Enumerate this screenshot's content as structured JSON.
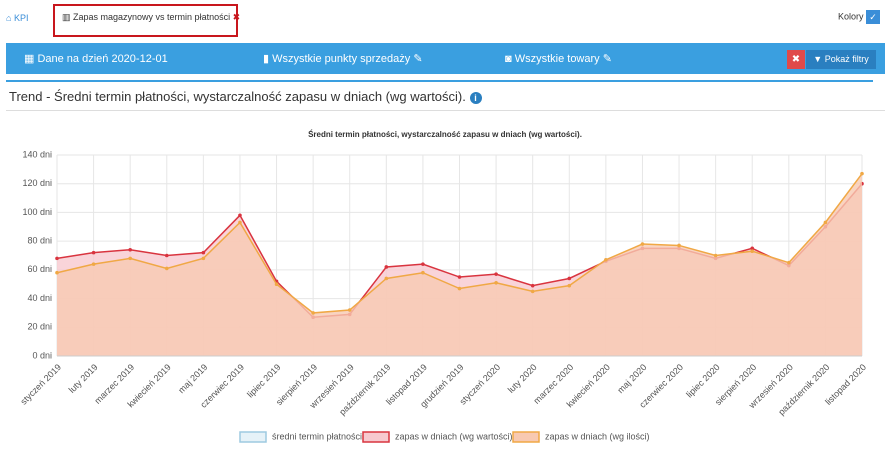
{
  "tabs": {
    "home": "KPI",
    "active": "Zapas magazynowy vs termin płatności",
    "colors": "Kolory"
  },
  "filters": {
    "date": "Dane na dzień 2020-12-01",
    "stores": "Wszystkie punkty sprzedaży",
    "products": "Wszystkie towary",
    "show_filters": "Pokaż filtry"
  },
  "section_title": "Trend - Średni termin płatności, wystarczalność zapasu w dniach (wg wartości).",
  "chart_data": {
    "type": "area",
    "title": "Średni termin płatności, wystarczalność zapasu w dniach (wg wartości).",
    "categories": [
      "styczeń 2019",
      "luty 2019",
      "marzec 2019",
      "kwiecień 2019",
      "maj 2019",
      "czerwiec 2019",
      "lipiec 2019",
      "sierpień 2019",
      "wrzesień 2019",
      "październik 2019",
      "listopad 2019",
      "grudzień 2019",
      "styczeń 2020",
      "luty 2020",
      "marzec 2020",
      "kwiecień 2020",
      "maj 2020",
      "czerwiec 2020",
      "lipiec 2020",
      "sierpień 2020",
      "wrzesień 2020",
      "październik 2020",
      "listopad 2020"
    ],
    "series": [
      {
        "name": "średni termin płatności",
        "color": "#9ecae1",
        "fill": "#e6f2f8",
        "values": [
          null,
          null,
          null,
          null,
          null,
          null,
          null,
          null,
          null,
          null,
          null,
          null,
          null,
          null,
          null,
          null,
          null,
          null,
          null,
          null,
          null,
          null,
          null
        ]
      },
      {
        "name": "zapas w dniach (wg wartości)",
        "color": "#d9343f",
        "fill": "#f7c9cf",
        "values": [
          68,
          72,
          74,
          70,
          72,
          98,
          52,
          27,
          29,
          62,
          64,
          55,
          57,
          49,
          54,
          66,
          75,
          75,
          68,
          75,
          63,
          90,
          120
        ]
      },
      {
        "name": "zapas w dniach (wg ilości)",
        "color": "#f0a845",
        "fill": "#f8c9b1",
        "values": [
          58,
          64,
          68,
          61,
          68,
          93,
          50,
          30,
          32,
          54,
          58,
          47,
          51,
          45,
          49,
          67,
          78,
          77,
          70,
          73,
          65,
          93,
          127
        ]
      }
    ],
    "ylim": [
      0,
      140
    ],
    "yticks": [
      {
        "value": 0,
        "label": "0 dni"
      },
      {
        "value": 20,
        "label": "20 dni"
      },
      {
        "value": 40,
        "label": "40 dni"
      },
      {
        "value": 60,
        "label": "60 dni"
      },
      {
        "value": 80,
        "label": "80 dni"
      },
      {
        "value": 100,
        "label": "100 dni"
      },
      {
        "value": 120,
        "label": "120 dni"
      },
      {
        "value": 140,
        "label": "140 dni"
      }
    ],
    "grid": true,
    "legend": "bottom"
  }
}
